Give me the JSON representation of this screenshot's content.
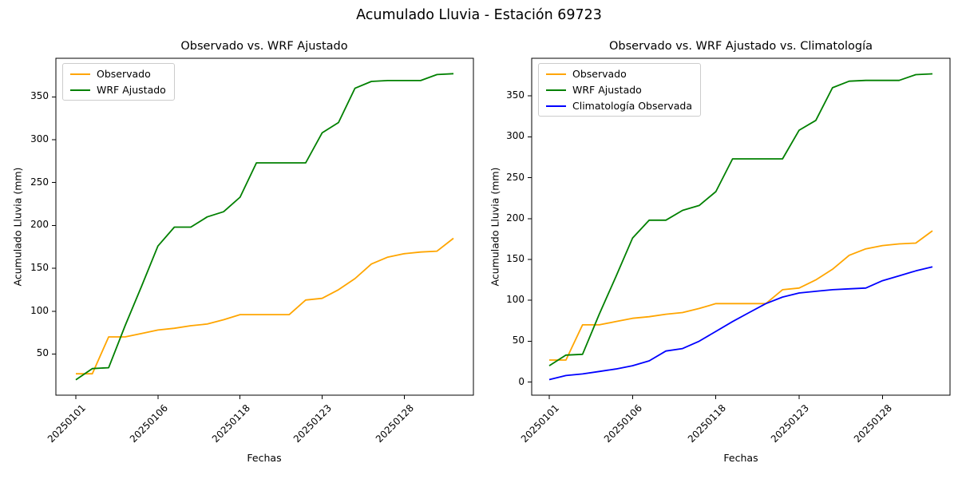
{
  "suptitle": "Acumulado Lluvia - Estación 69723",
  "chart_data": [
    {
      "type": "line",
      "title": "Observado vs. WRF Ajustado",
      "xlabel": "Fechas",
      "ylabel": "Acumulado Lluvia (mm)",
      "x_tick_labels": [
        "20250101",
        "20250106",
        "20250118",
        "20250123",
        "20250128"
      ],
      "x_tick_positions": [
        0,
        5,
        10,
        15,
        20
      ],
      "y_ticks": [
        50,
        100,
        150,
        200,
        250,
        300,
        350
      ],
      "ylim": [
        2,
        395
      ],
      "grid": false,
      "legend_position": "upper left",
      "series": [
        {
          "name": "Observado",
          "color": "#FFA500",
          "values": [
            27,
            27,
            70,
            70,
            74,
            78,
            80,
            83,
            85,
            90,
            96,
            96,
            96,
            96,
            113,
            115,
            125,
            138,
            155,
            163,
            167,
            169,
            170,
            185
          ]
        },
        {
          "name": "WRF Ajustado",
          "color": "#008000",
          "values": [
            20,
            33,
            34,
            83,
            129,
            176,
            198,
            198,
            210,
            216,
            233,
            273,
            273,
            273,
            273,
            308,
            320,
            360,
            368,
            369,
            369,
            369,
            376,
            377
          ]
        }
      ]
    },
    {
      "type": "line",
      "title": "Observado vs. WRF Ajustado vs. Climatología",
      "xlabel": "Fechas",
      "ylabel": "Acumulado Lluvia (mm)",
      "x_tick_labels": [
        "20250101",
        "20250106",
        "20250118",
        "20250123",
        "20250128"
      ],
      "x_tick_positions": [
        0,
        5,
        10,
        15,
        20
      ],
      "y_ticks": [
        0,
        50,
        100,
        150,
        200,
        250,
        300,
        350
      ],
      "ylim": [
        -16,
        396
      ],
      "grid": false,
      "legend_position": "upper left",
      "series": [
        {
          "name": "Observado",
          "color": "#FFA500",
          "values": [
            27,
            27,
            70,
            70,
            74,
            78,
            80,
            83,
            85,
            90,
            96,
            96,
            96,
            96,
            113,
            115,
            125,
            138,
            155,
            163,
            167,
            169,
            170,
            185
          ]
        },
        {
          "name": "WRF Ajustado",
          "color": "#008000",
          "values": [
            20,
            33,
            34,
            83,
            129,
            176,
            198,
            198,
            210,
            216,
            233,
            273,
            273,
            273,
            273,
            308,
            320,
            360,
            368,
            369,
            369,
            369,
            376,
            377
          ]
        },
        {
          "name": "Climatología Observada",
          "color": "#0000FF",
          "values": [
            3,
            8,
            10,
            13,
            16,
            20,
            26,
            38,
            41,
            50,
            62,
            74,
            85,
            96,
            104,
            109,
            111,
            113,
            114,
            115,
            124,
            130,
            136,
            141
          ]
        }
      ]
    }
  ]
}
